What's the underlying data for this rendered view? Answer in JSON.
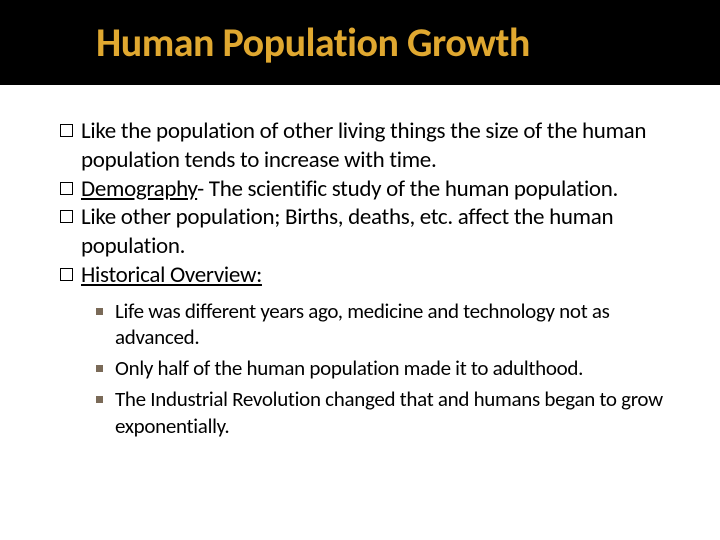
{
  "colors": {
    "title_bg": "#000000",
    "title_fg": "#e0a830",
    "body_text": "#000000",
    "sub_bullet": "#7a6a58",
    "page_bg": "#ffffff"
  },
  "title": "Human Population Growth",
  "bullets": [
    {
      "prefix": "",
      "bold_underline": "",
      "text": "Like the population of other living things the size of the human population tends to increase with time."
    },
    {
      "prefix": "",
      "bold_underline": "Demography",
      "text": "- The scientific study of the human population."
    },
    {
      "prefix": "",
      "bold_underline": "",
      "text": "Like other population; Births, deaths, etc. affect the human population."
    },
    {
      "prefix": "",
      "bold_underline": "Historical Overview:",
      "text": ""
    }
  ],
  "sub_bullets": [
    "Life was different years ago, medicine and technology not as advanced.",
    "Only half of the human population made it to adulthood.",
    "The Industrial Revolution changed that and humans began to grow exponentially."
  ],
  "typography": {
    "title_fontsize": 40,
    "body_fontsize": 23,
    "sub_fontsize": 21
  }
}
